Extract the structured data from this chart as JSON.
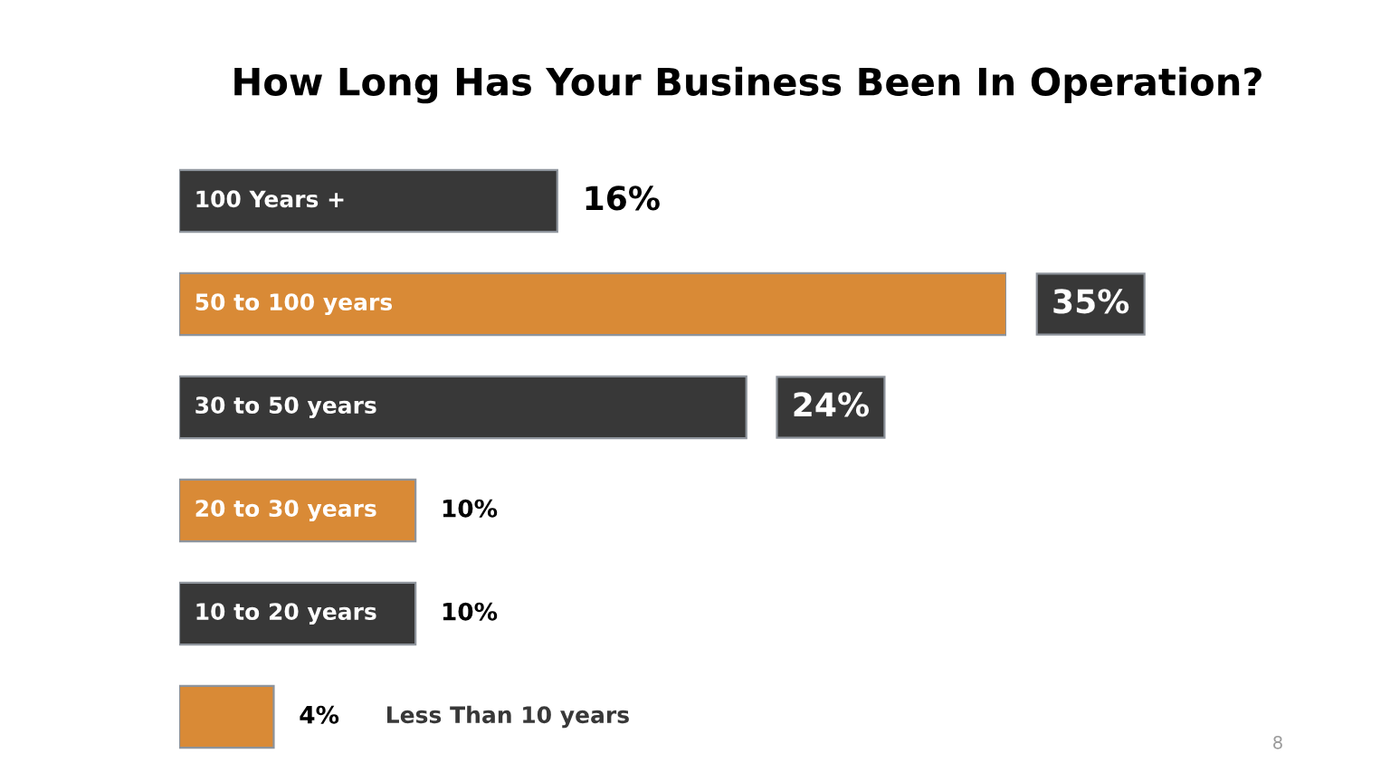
{
  "chart_data": {
    "type": "bar",
    "orientation": "horizontal",
    "title": "How Long Has Your Business Been In Operation?",
    "categories": [
      "100 Years +",
      "50 to 100 years",
      "30 to 50 years",
      "20 to 30 years",
      "10 to 20 years",
      "Less Than 10 years"
    ],
    "values": [
      16,
      35,
      24,
      10,
      10,
      4
    ],
    "value_labels": [
      "16%",
      "35%",
      "24%",
      "10%",
      "10%",
      "4%"
    ],
    "colors": [
      "#383838",
      "#d98a36",
      "#383838",
      "#d98a36",
      "#383838",
      "#d98a36"
    ],
    "tick_labels": false,
    "annotations": [
      "8"
    ]
  }
}
